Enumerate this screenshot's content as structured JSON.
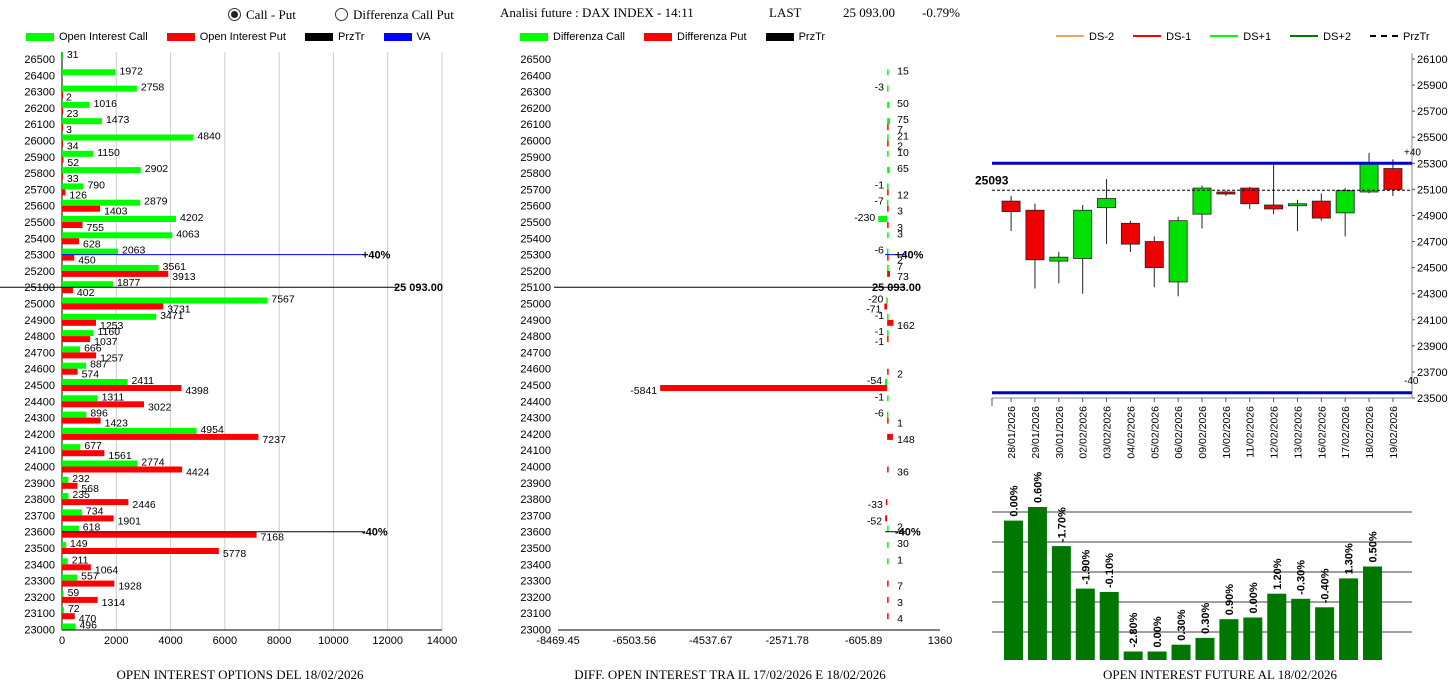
{
  "header": {
    "radio_call_put": "Call - Put",
    "radio_diff": "Differenza Call Put",
    "analysis_label": "Analisi future : DAX INDEX - 14:11",
    "last_label": "LAST",
    "last_value": "25 093.00",
    "last_change": "-0.79%"
  },
  "colors": {
    "call": "#00ff00",
    "put": "#ff0000",
    "przTr": "#000000",
    "va": "#0000ff",
    "bull": "#00e000",
    "bear": "#ee0000",
    "futbar": "#007700"
  },
  "legend1": [
    "Open Interest Call",
    "Open Interest Put",
    "PrzTr",
    "VA"
  ],
  "legend2": [
    "Differenza Call",
    "Differenza Put",
    "PrzTr"
  ],
  "legend3": [
    "DS-2",
    "DS-1",
    "DS+1",
    "DS+2",
    "PrzTr"
  ],
  "captions": {
    "oi": "OPEN INTEREST OPTIONS DEL 18/02/2026",
    "diff": "DIFF. OPEN INTEREST TRA IL 17/02/2026 E 18/02/2026",
    "fut": "OPEN INTEREST FUTURE AL 18/02/2026"
  },
  "chart_data": [
    {
      "type": "bar",
      "orientation": "horizontal",
      "categories": [
        26500,
        26400,
        26300,
        26200,
        26100,
        26000,
        25900,
        25800,
        25700,
        25600,
        25500,
        25400,
        25300,
        25200,
        25100,
        25000,
        24900,
        24800,
        24700,
        24600,
        24500,
        24400,
        24300,
        24200,
        24100,
        24000,
        23900,
        23800,
        23700,
        23600,
        23500,
        23400,
        23300,
        23200,
        23100,
        23000
      ],
      "series": [
        {
          "name": "Open Interest Call",
          "values": [
            31,
            1972,
            2758,
            1016,
            1473,
            4840,
            1150,
            2902,
            790,
            2879,
            4202,
            4063,
            2063,
            3561,
            1877,
            7567,
            3471,
            1160,
            666,
            887,
            2411,
            1311,
            896,
            4954,
            677,
            2774,
            232,
            235,
            734,
            618,
            149,
            211,
            557,
            59,
            72,
            496
          ]
        },
        {
          "name": "Open Interest Put",
          "values": [
            null,
            null,
            2,
            23,
            3,
            34,
            52,
            33,
            126,
            1403,
            755,
            628,
            450,
            3913,
            402,
            3731,
            1253,
            1037,
            1257,
            574,
            4398,
            3022,
            1423,
            7237,
            1561,
            4424,
            568,
            2446,
            1901,
            7168,
            5778,
            1064,
            1928,
            1314,
            470,
            null
          ]
        }
      ],
      "xlim": [
        0,
        14000
      ],
      "xticks": [
        "0",
        "2000",
        "4000",
        "6000",
        "8000",
        "10000",
        "12000",
        "14000"
      ],
      "annotations": [
        {
          "label": "+40%",
          "strike": 25300
        },
        {
          "label": "25 093.00",
          "strike": 25100
        },
        {
          "label": "-40%",
          "strike": 23600
        }
      ]
    },
    {
      "type": "bar",
      "orientation": "horizontal",
      "categories": [
        26500,
        26400,
        26300,
        26200,
        26100,
        26000,
        25900,
        25800,
        25700,
        25600,
        25500,
        25400,
        25300,
        25200,
        25100,
        25000,
        24900,
        24800,
        24700,
        24600,
        24500,
        24400,
        24300,
        24200,
        24100,
        24000,
        23900,
        23800,
        23700,
        23600,
        23500,
        23400,
        23300,
        23200,
        23100,
        23000
      ],
      "series": [
        {
          "name": "Differenza Call",
          "values": [
            null,
            15,
            -3,
            50,
            75,
            21,
            10,
            65,
            -1,
            -7,
            -230,
            3,
            -6,
            7,
            null,
            -20,
            -1,
            -1,
            null,
            null,
            -54,
            -1,
            -6,
            null,
            null,
            null,
            null,
            null,
            null,
            2,
            30,
            1,
            null,
            null,
            null,
            null
          ]
        },
        {
          "name": "Differenza Put",
          "values": [
            null,
            null,
            null,
            null,
            7,
            2,
            null,
            null,
            12,
            3,
            3,
            null,
            2,
            73,
            null,
            -71,
            162,
            -1,
            null,
            2,
            -5841,
            null,
            1,
            148,
            null,
            36,
            null,
            -33,
            -52,
            null,
            null,
            null,
            7,
            3,
            4,
            null
          ]
        }
      ],
      "xlim": [
        -8469.45,
        1360
      ],
      "xticks": [
        "-8469.45",
        "-6503.56",
        "-4537.67",
        "-2571.78",
        "-605.89",
        "1360"
      ],
      "annotations": [
        {
          "label": "+40%",
          "strike": 25300
        },
        {
          "label": "25 093.00",
          "strike": 25100
        },
        {
          "label": "-40%",
          "strike": 23600
        }
      ]
    },
    {
      "type": "candlestick",
      "x": [
        "28/01/2026",
        "29/01/2026",
        "30/01/2026",
        "02/02/2026",
        "03/02/2026",
        "04/02/2026",
        "05/02/2026",
        "06/02/2026",
        "09/02/2026",
        "10/02/2026",
        "11/02/2026",
        "12/02/2026",
        "13/02/2026",
        "16/02/2026",
        "17/02/2026",
        "18/02/2026",
        "19/02/2026"
      ],
      "open": [
        25010,
        24940,
        24550,
        24570,
        24960,
        24840,
        24700,
        24390,
        24910,
        25080,
        25110,
        24980,
        24980,
        25010,
        24920,
        25080,
        25260
      ],
      "close": [
        24930,
        24560,
        24580,
        24940,
        25030,
        24680,
        24500,
        24860,
        25110,
        25070,
        24990,
        24950,
        24990,
        24880,
        25090,
        25300,
        25100
      ],
      "high": [
        25050,
        24990,
        24620,
        24980,
        25180,
        24860,
        24740,
        24890,
        25130,
        25090,
        25120,
        25300,
        25020,
        25070,
        25110,
        25380,
        25330
      ],
      "low": [
        24780,
        24340,
        24380,
        24300,
        24680,
        24620,
        24350,
        24280,
        24800,
        25050,
        24950,
        24910,
        24780,
        24860,
        24740,
        25070,
        25050
      ],
      "ylim": [
        23500,
        26100
      ],
      "yticks": [
        "23500",
        "23700",
        "23900",
        "24100",
        "24300",
        "24500",
        "24700",
        "24900",
        "25100",
        "25300",
        "25500",
        "25700",
        "25900",
        "26100"
      ],
      "annotations": [
        {
          "label": "25093",
          "value": 25093
        },
        {
          "label": "+40",
          "value": 25300
        },
        {
          "label": "-40",
          "value": 23540
        }
      ]
    },
    {
      "type": "bar",
      "categories": [
        "28/01/2026",
        "29/01/2026",
        "30/01/2026",
        "02/02/2026",
        "03/02/2026",
        "04/02/2026",
        "05/02/2026",
        "06/02/2026",
        "09/02/2026",
        "10/02/2026",
        "11/02/2026",
        "12/02/2026",
        "13/02/2026",
        "16/02/2026",
        "17/02/2026",
        "18/02/2026"
      ],
      "values": [
        0.82,
        0.9,
        0.67,
        0.42,
        0.4,
        0.05,
        0.05,
        0.09,
        0.13,
        0.24,
        0.25,
        0.39,
        0.36,
        0.31,
        0.48,
        0.55
      ],
      "labels": [
        "0.00%",
        "0.60%",
        "-1.70%",
        "-1.90%",
        "-0.10%",
        "-2.80%",
        "0.00%",
        "0.30%",
        "0.30%",
        "0.90%",
        "0.00%",
        "1.20%",
        "-0.30%",
        "-0.40%",
        "1.30%",
        "0.50%"
      ]
    }
  ]
}
